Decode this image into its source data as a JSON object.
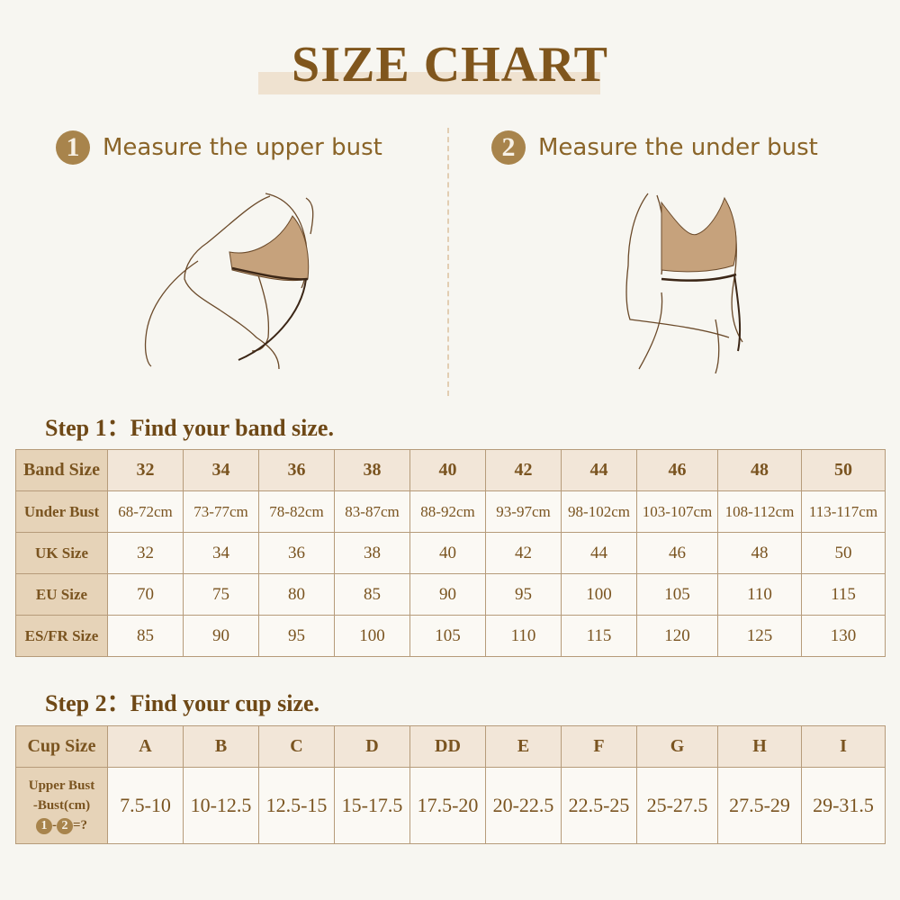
{
  "title": "SIZE CHART",
  "measure": [
    {
      "number": "1",
      "label": "Measure the upper bust"
    },
    {
      "number": "2",
      "label": "Measure the under bust"
    }
  ],
  "step1": {
    "title": "Step 1：Find your band size.",
    "rows": [
      {
        "label": "Band Size",
        "values": [
          "32",
          "34",
          "36",
          "38",
          "40",
          "42",
          "44",
          "46",
          "48",
          "50"
        ]
      },
      {
        "label": "Under Bust",
        "values": [
          "68-72cm",
          "73-77cm",
          "78-82cm",
          "83-87cm",
          "88-92cm",
          "93-97cm",
          "98-102cm",
          "103-107cm",
          "108-112cm",
          "113-117cm"
        ]
      },
      {
        "label": "UK Size",
        "values": [
          "32",
          "34",
          "36",
          "38",
          "40",
          "42",
          "44",
          "46",
          "48",
          "50"
        ]
      },
      {
        "label": "EU Size",
        "values": [
          "70",
          "75",
          "80",
          "85",
          "90",
          "95",
          "100",
          "105",
          "110",
          "115"
        ]
      },
      {
        "label": "ES/FR Size",
        "values": [
          "85",
          "90",
          "95",
          "100",
          "105",
          "110",
          "115",
          "120",
          "125",
          "130"
        ]
      }
    ]
  },
  "step2": {
    "title": "Step 2：Find your cup size.",
    "header_label": "Cup Size",
    "cups": [
      "A",
      "B",
      "C",
      "D",
      "DD",
      "E",
      "F",
      "G",
      "H",
      "I"
    ],
    "row_label_line1": "Upper Bust",
    "row_label_line2": "-Bust(cm)",
    "formula_n1": "1",
    "formula_minus": "-",
    "formula_n2": "2",
    "formula_eq": "=?",
    "values": [
      "7.5-10",
      "10-12.5",
      "12.5-15",
      "15-17.5",
      "17.5-20",
      "20-22.5",
      "22.5-25",
      "25-27.5",
      "27.5-29",
      "29-31.5"
    ]
  },
  "colors": {
    "text": "#7a5420",
    "header_cell": "#e6d3b8",
    "header_row": "#f2e6d8",
    "accent": "#a8844c",
    "background": "#f7f6f1"
  }
}
